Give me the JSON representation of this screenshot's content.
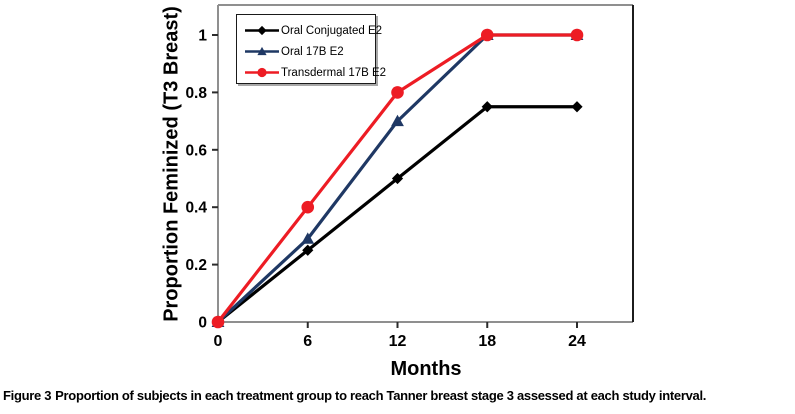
{
  "chart_data": {
    "type": "line",
    "title": "",
    "xlabel": "Months",
    "ylabel": "Proportion Feminized (T3 Breast)",
    "x": [
      0,
      6,
      12,
      18,
      24
    ],
    "x_ticks": [
      0,
      6,
      12,
      18,
      24
    ],
    "y_ticks": [
      0,
      0.2,
      0.4,
      0.6,
      0.8,
      1
    ],
    "xlim": [
      0,
      27.8
    ],
    "ylim": [
      0,
      1.1
    ],
    "grid": false,
    "legend_position": "top-left-inside",
    "series": [
      {
        "name": "Oral Conjugated E2",
        "marker": "diamond",
        "color": "#000000",
        "values": [
          0,
          0.25,
          0.5,
          0.75,
          0.75
        ]
      },
      {
        "name": "Oral 17B E2",
        "marker": "triangle",
        "color": "#1F3864",
        "values": [
          0,
          0.29,
          0.7,
          1.0,
          1.0
        ]
      },
      {
        "name": "Transdermal 17B E2",
        "marker": "circle",
        "color": "#ED1C24",
        "values": [
          0,
          0.4,
          0.8,
          1.0,
          1.0
        ]
      }
    ]
  },
  "caption": {
    "label": "Figure 3",
    "text": "Proportion of subjects in each treatment group to reach Tanner breast stage 3 assessed at each study interval."
  },
  "colors": {
    "plot_border": "#8f8f8f",
    "plot_border_right": "#1c1c1c",
    "tick": "#2b2b2b",
    "legend_border": "#1a1a1a",
    "legend_shadow": "#a8a8a8"
  }
}
